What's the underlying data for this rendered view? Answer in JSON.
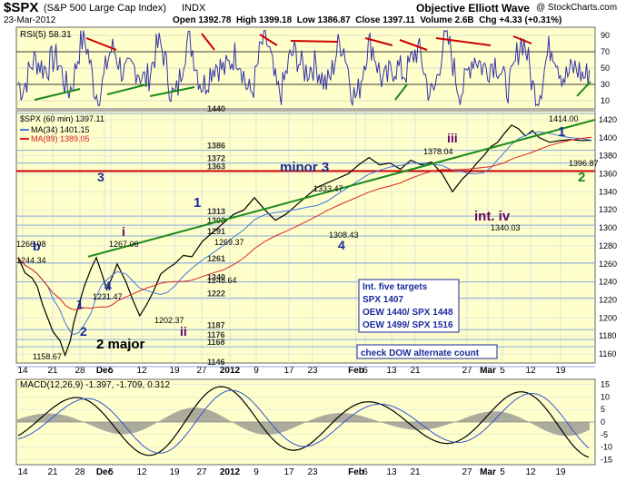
{
  "header": {
    "symbol": "$SPX",
    "name": "(S&P 500 Large Cap Index)",
    "exchange": "INDX",
    "source": "Objective Elliott Wave",
    "credit": "@ StockCharts.com",
    "date": "23-Mar-2012",
    "quote": "Open 1392.78  High 1399.18  Low 1386.87  Close 1397.11  Volume 2.6B  Chg +4.33 (+0.31%)"
  },
  "colors": {
    "panel_bg": "#ffffcc",
    "rsi_line": "#3333aa",
    "price_line": "#000000",
    "ma34": "#4477dd",
    "ma89": "#dd2222",
    "trend_green": "#1a8a1a",
    "resistance_red": "#cc0000",
    "level_blue": "#88aadd",
    "label_blue": "#1a2a9a",
    "label_purple": "#660066",
    "macd_line": "#000000",
    "signal_line": "#3355cc",
    "hist": "#888888"
  },
  "chart_data": [
    {
      "type": "line",
      "panel": "rsi",
      "title": "RSI(5) 58.31",
      "y_ticks": [
        "90",
        "70",
        "50",
        "30",
        "10"
      ],
      "ylim": [
        0,
        100
      ],
      "grid": true,
      "notes": "oscillating RSI; red lines mark lower highs, green lines mark higher lows"
    },
    {
      "type": "line",
      "panel": "price",
      "title": "$SPX (60 min) 1397.11",
      "legend": [
        "$SPX (60 min) 1397.11",
        "MA(34) 1401.15",
        "MA(89) 1389.05"
      ],
      "legend_placement": "top-left",
      "ylim": [
        1150,
        1430
      ],
      "y_ticks": [
        1160,
        1180,
        1200,
        1220,
        1240,
        1260,
        1280,
        1300,
        1320,
        1340,
        1360,
        1380,
        1400,
        1420
      ],
      "x_labels": [
        "14",
        "21",
        "28",
        "Dec",
        "5",
        "12",
        "19",
        "27",
        "2012",
        "9",
        "17",
        "23",
        "Feb",
        "6",
        "13",
        "21",
        "27",
        "Mar",
        "5",
        "12",
        "19"
      ],
      "series": [
        {
          "name": "$SPX (60 min)",
          "x": [
            0,
            4,
            8,
            11,
            14,
            17,
            20,
            24,
            27,
            30,
            32,
            35,
            38,
            42,
            45,
            48,
            51,
            54,
            57,
            62,
            66,
            70,
            74,
            78,
            82,
            86,
            90,
            95,
            100,
            106,
            112,
            118,
            124,
            130,
            136,
            142,
            148,
            154,
            160,
            166,
            172,
            178,
            184,
            190,
            196,
            202,
            208,
            214,
            220,
            226,
            232,
            238,
            244,
            250,
            256,
            260,
            264,
            268,
            272,
            276,
            280,
            284,
            288,
            292,
            296,
            300,
            306,
            312,
            318,
            324,
            330
          ],
          "y": [
            1266.98,
            1250,
            1244.34,
            1235,
            1215,
            1200,
            1185,
            1175,
            1158.67,
            1175,
            1195,
            1215,
            1235,
            1255,
            1267.06,
            1250,
            1231.47,
            1245,
            1260,
            1240,
            1220,
            1202.37,
            1215,
            1230,
            1248.64,
            1255,
            1260,
            1269.37,
            1268,
            1285,
            1295,
            1305,
            1315,
            1320,
            1333.47,
            1320,
            1308.43,
            1315,
            1325,
            1335,
            1345,
            1350,
            1355,
            1360,
            1370,
            1378.04,
            1370,
            1372,
            1365,
            1375,
            1370,
            1373,
            1360,
            1340.03,
            1355,
            1362,
            1372,
            1380,
            1390,
            1395,
            1405,
            1414.0,
            1410,
            1402,
            1408,
            1400,
            1395,
            1396.87,
            1398,
            1397,
            1397.11
          ]
        },
        {
          "name": "MA(34)",
          "values_note": "smoothed blue moving average"
        },
        {
          "name": "MA(89)",
          "values_note": "smoothed red moving average"
        }
      ],
      "horizontal_levels": [
        {
          "value": 1440,
          "label": "1440"
        },
        {
          "value": 1386,
          "label": "1386"
        },
        {
          "value": 1372,
          "label": "1372"
        },
        {
          "value": 1363,
          "label": "1363"
        },
        {
          "value": 1313,
          "label": "1313"
        },
        {
          "value": 1303,
          "label": "1303"
        },
        {
          "value": 1291,
          "label": "1291"
        },
        {
          "value": 1261,
          "label": "1261"
        },
        {
          "value": 1240,
          "label": "1240"
        },
        {
          "value": 1222,
          "label": "1222"
        },
        {
          "value": 1187,
          "label": "1187"
        },
        {
          "value": 1176,
          "label": "1176"
        },
        {
          "value": 1168,
          "label": "1168"
        },
        {
          "value": 1146,
          "label": "1146"
        }
      ],
      "annotations": [
        {
          "text": "1266.98"
        },
        {
          "text": "1244.34"
        },
        {
          "text": "1158.67"
        },
        {
          "text": "1267.06"
        },
        {
          "text": "1231.47"
        },
        {
          "text": "1202.37"
        },
        {
          "text": "1248.64"
        },
        {
          "text": "1269.37"
        },
        {
          "text": "1333.47"
        },
        {
          "text": "1308.43"
        },
        {
          "text": "1378.04"
        },
        {
          "text": "1340.03"
        },
        {
          "text": "1414.00"
        },
        {
          "text": "1396.87"
        }
      ],
      "wave_labels": [
        "b",
        "1",
        "2",
        "3",
        "4",
        "i",
        "ii",
        "1",
        "minor 3",
        "4",
        "iii",
        "int. iv",
        "1",
        "2",
        "2 major"
      ],
      "info_box": [
        "Int. five targets",
        "SPX 1407",
        "OEW 1440/ SPX 1448",
        "OEW 1499/ SPX 1516"
      ],
      "note_box": "check DOW alternate count"
    },
    {
      "type": "line",
      "panel": "macd",
      "title": "MACD(12,26,9) -1.397, -1.709, 0.312",
      "y_ticks": [
        "15",
        "10",
        "5",
        "0",
        "-5",
        "-10",
        "-15"
      ],
      "ylim": [
        -17,
        17
      ],
      "x_labels": [
        "14",
        "21",
        "28",
        "Dec",
        "5",
        "12",
        "19",
        "27",
        "2012",
        "9",
        "17",
        "23",
        "Feb",
        "6",
        "13",
        "21",
        "27",
        "Mar",
        "5",
        "12",
        "19"
      ]
    }
  ]
}
